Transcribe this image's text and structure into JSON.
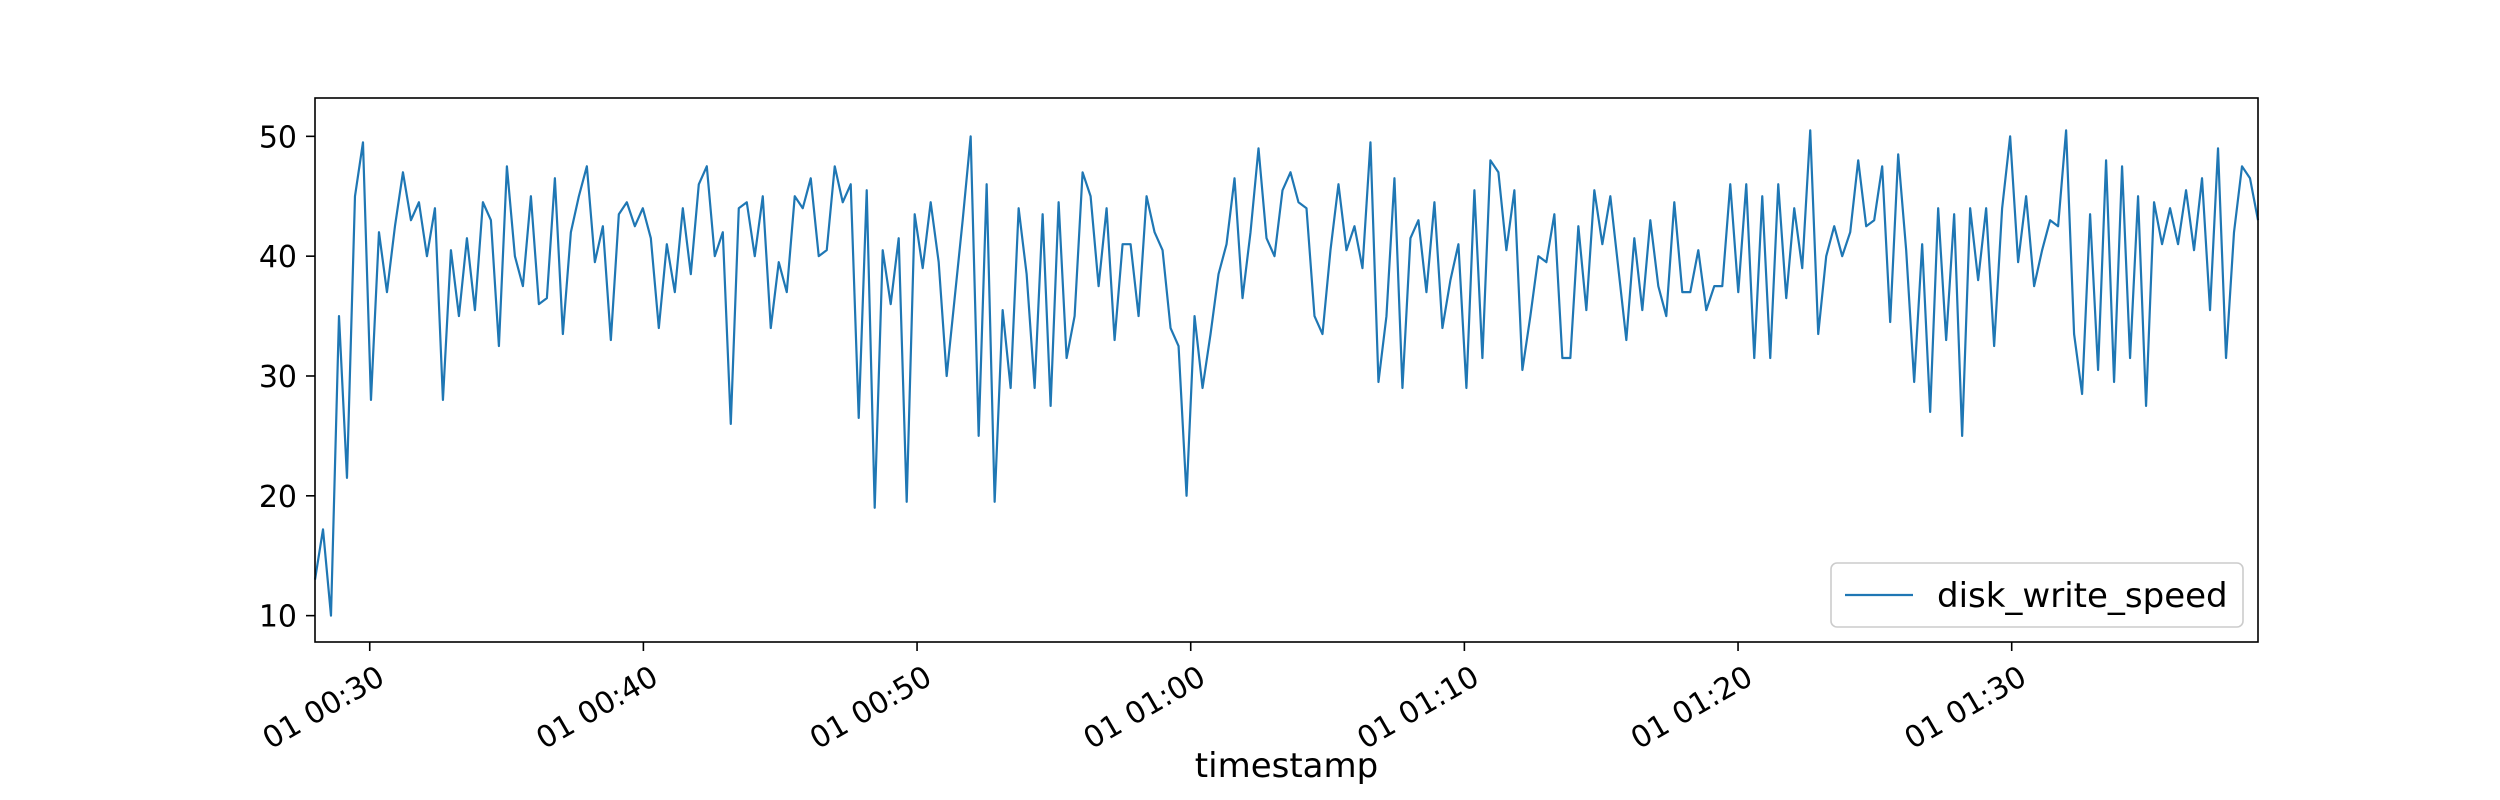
{
  "chart_data": {
    "type": "line",
    "title": "",
    "xlabel": "timestamp",
    "ylabel": "",
    "x_start": "2000-01-01 00:28",
    "x_step_minutes": 1,
    "x_ticks": [
      {
        "x": "2000-01-01 00:30",
        "label": "01 00:30"
      },
      {
        "x": "2000-01-01 00:40",
        "label": "01 00:40"
      },
      {
        "x": "2000-01-01 00:50",
        "label": "01 00:50"
      },
      {
        "x": "2000-01-01 01:00",
        "label": "01 01:00"
      },
      {
        "x": "2000-01-01 01:10",
        "label": "01 01:10"
      },
      {
        "x": "2000-01-01 01:20",
        "label": "01 01:20"
      },
      {
        "x": "2000-01-01 01:30",
        "label": "01 01:30"
      }
    ],
    "xlim": [
      "2000-01-01 00:28",
      "2000-01-01 01:39"
    ],
    "yticks": [
      10,
      20,
      30,
      40,
      50
    ],
    "ylim": [
      7.8,
      53.2
    ],
    "grid": false,
    "legend": "bottom-right",
    "color": "#1f77b4",
    "series": [
      {
        "name": "disk_write_speed",
        "values": [
          13.0,
          17.2,
          10.0,
          35.0,
          21.5,
          45.0,
          49.5,
          28.0,
          42.0,
          37.0,
          42.5,
          47.0,
          43.0,
          44.5,
          40.0,
          44.0,
          28.0,
          40.5,
          35.0,
          41.5,
          35.5,
          44.5,
          43.0,
          32.5,
          47.5,
          40.0,
          37.5,
          45.0,
          36.0,
          36.5,
          46.5,
          33.5,
          42.0,
          45.0,
          47.5,
          39.5,
          42.5,
          33.0,
          43.5,
          44.5,
          42.5,
          44.0,
          41.5,
          34.0,
          41.0,
          37.0,
          44.0,
          38.5,
          46.0,
          47.5,
          40.0,
          42.0,
          26.0,
          44.0,
          44.5,
          40.0,
          45.0,
          34.0,
          39.5,
          37.0,
          45.0,
          44.0,
          46.5,
          40.0,
          40.5,
          47.5,
          44.5,
          46.0,
          26.5,
          45.5,
          19.0,
          40.5,
          36.0,
          41.5,
          19.5,
          43.5,
          39.0,
          44.5,
          39.5,
          30.0,
          36.5,
          43.0,
          50.0,
          25.0,
          46.0,
          19.5,
          35.5,
          29.0,
          44.0,
          38.5,
          29.0,
          43.5,
          27.5,
          44.5,
          31.5,
          35.0,
          47.0,
          45.0,
          37.5,
          44.0,
          33.0,
          41.0,
          41.0,
          35.0,
          45.0,
          42.0,
          40.5,
          34.0,
          32.5,
          20.0,
          35.0,
          29.0,
          33.5,
          38.5,
          41.0,
          46.5,
          36.5,
          42.0,
          49.0,
          41.5,
          40.0,
          45.5,
          47.0,
          44.5,
          44.0,
          35.0,
          33.5,
          40.5,
          46.0,
          40.5,
          42.5,
          39.0,
          49.5,
          29.5,
          35.0,
          46.5,
          29.0,
          41.5,
          43.0,
          37.0,
          44.5,
          34.0,
          38.0,
          41.0,
          29.0,
          45.5,
          31.5,
          48.0,
          47.0,
          40.5,
          45.5,
          30.5,
          35.0,
          40.0,
          39.5,
          43.5,
          31.5,
          31.5,
          42.5,
          35.5,
          45.5,
          41.0,
          45.0,
          39.0,
          33.0,
          41.5,
          35.5,
          43.0,
          37.5,
          35.0,
          44.5,
          37.0,
          37.0,
          40.5,
          35.5,
          37.5,
          37.5,
          46.0,
          37.0,
          46.0,
          31.5,
          45.0,
          31.5,
          46.0,
          36.5,
          44.0,
          39.0,
          50.5,
          33.5,
          40.0,
          42.5,
          40.0,
          42.0,
          48.0,
          42.5,
          43.0,
          47.5,
          34.5,
          48.5,
          40.5,
          29.5,
          41.0,
          27.0,
          44.0,
          33.0,
          43.5,
          25.0,
          44.0,
          38.0,
          44.0,
          32.5,
          44.0,
          50.0,
          39.5,
          45.0,
          37.5,
          40.5,
          43.0,
          42.5,
          50.5,
          33.5,
          28.5,
          43.5,
          30.5,
          48.0,
          29.5,
          47.5,
          31.5,
          45.0,
          27.5,
          44.5,
          41.0,
          44.0,
          41.0,
          45.5,
          40.5,
          46.5,
          35.5,
          49.0,
          31.5,
          42.0,
          47.5,
          46.5,
          43.0
        ]
      }
    ]
  }
}
